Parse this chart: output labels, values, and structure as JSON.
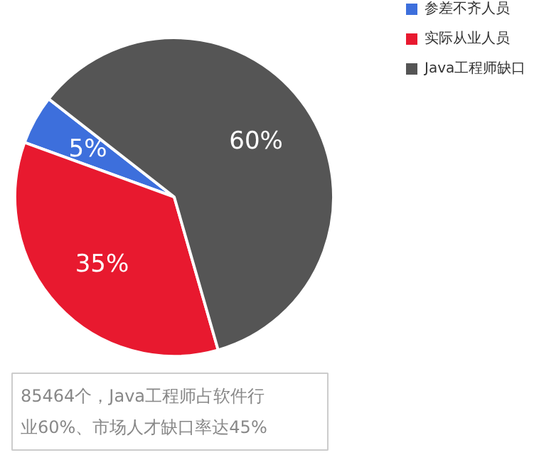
{
  "chart_data": {
    "type": "pie",
    "categories": [
      "参差不齐人员",
      "实际从业人员",
      "Java工程师缺口"
    ],
    "values": [
      5,
      35,
      60
    ],
    "colors": [
      "#3d6fdc",
      "#e8192f",
      "#555555"
    ],
    "value_labels": [
      "5%",
      "35%",
      "60%"
    ],
    "legend": "top right",
    "annotations": [
      "85464个，Java工程师占软件行业60%、市场人才缺口率达45%"
    ]
  }
}
